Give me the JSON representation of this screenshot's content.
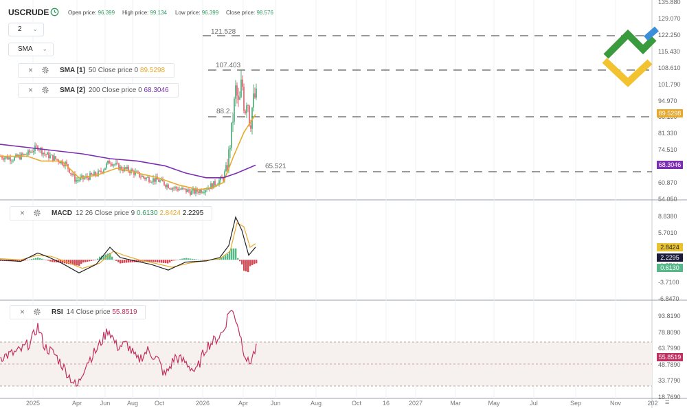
{
  "header": {
    "symbol": "USCRUDE",
    "open_label": "Open price:",
    "open_value": "96.399",
    "high_label": "High price:",
    "high_value": "99.134",
    "low_label": "Low price:",
    "low_value": "96.399",
    "close_label": "Close price:",
    "close_value": "98.576"
  },
  "controls": {
    "timeframe": "2",
    "indicator_select": "SMA"
  },
  "indicators": {
    "sma1": {
      "name": "SMA [1]",
      "params": "50 Close price 0",
      "value": "89.5298",
      "color": "#e8a92b"
    },
    "sma2": {
      "name": "SMA [2]",
      "params": "200 Close price 0",
      "value": "68.3046",
      "color": "#7b2fb0"
    },
    "macd": {
      "name": "MACD",
      "params": "12 26 Close price 9",
      "v1": "0.6130",
      "v2": "2.8424",
      "v3": "2.2295"
    },
    "rsi": {
      "name": "RSI",
      "params": "14 Close price",
      "value": "55.8519"
    }
  },
  "price_levels": [
    "121.528",
    "107.403",
    "88.2..",
    "65.521"
  ],
  "price_axis": [
    "135.880",
    "129.070",
    "122.250",
    "115.430",
    "108.610",
    "101.790",
    "94.970",
    "88.150",
    "81.330",
    "74.510",
    "67.690",
    "60.870",
    "54.050"
  ],
  "macd_axis": [
    "8.8380",
    "5.7010",
    "2.5640",
    "-0.5730",
    "-3.7100",
    "-6.8470"
  ],
  "rsi_axis": [
    "93.8190",
    "78.8090",
    "63.7990",
    "48.7890",
    "33.7790",
    "18.7690"
  ],
  "price_badges": {
    "sma1": "89.5298",
    "sma2": "68.3046"
  },
  "macd_badges": {
    "signal": "2.8424",
    "macd": "2.2295",
    "hist": "0.6130"
  },
  "rsi_badge": "55.8519",
  "x_axis": [
    "2025",
    "Apr",
    "Jun",
    "Aug",
    "Oct",
    "2026",
    "Apr",
    "Jun",
    "Aug",
    "Oct",
    "16",
    "2027",
    "Mar",
    "May",
    "Jul",
    "Sep",
    "Nov",
    "202"
  ],
  "colors": {
    "up": "#2e9a5e",
    "down": "#d64550",
    "sma1": "#e8a92b",
    "sma2": "#7b2fb0",
    "macd_line": "#222222",
    "signal_line": "#e8a92b",
    "rsi": "#c03060",
    "logo_green": "#3a9a3e",
    "logo_yellow": "#f2c230",
    "logo_blue": "#3a8fd8"
  },
  "chart_data": [
    {
      "type": "candlestick",
      "title": "USCRUDE",
      "x": [
        "2025",
        "Apr",
        "Jun",
        "Aug",
        "Oct",
        "2026",
        "Apr"
      ],
      "y_range": [
        54.05,
        135.88
      ],
      "series": [
        {
          "name": "SMA [1]",
          "values": [
            72,
            70,
            66,
            64,
            62,
            60,
            89.53
          ]
        },
        {
          "name": "SMA [2]",
          "values": [
            77,
            74,
            72,
            70,
            67,
            62,
            68.3
          ]
        }
      ],
      "horizontal_levels": [
        121.528,
        107.403,
        88.2,
        65.521
      ]
    },
    {
      "type": "line",
      "title": "MACD",
      "y_range": [
        -6.847,
        8.838
      ],
      "series": [
        {
          "name": "MACD",
          "last": 2.2295
        },
        {
          "name": "Signal",
          "last": 2.8424
        },
        {
          "name": "Histogram",
          "last": 0.613
        }
      ]
    },
    {
      "type": "line",
      "title": "RSI",
      "y_range": [
        18.769,
        93.819
      ],
      "series": [
        {
          "name": "RSI",
          "last": 55.8519
        }
      ],
      "bands": [
        70,
        30
      ]
    }
  ]
}
